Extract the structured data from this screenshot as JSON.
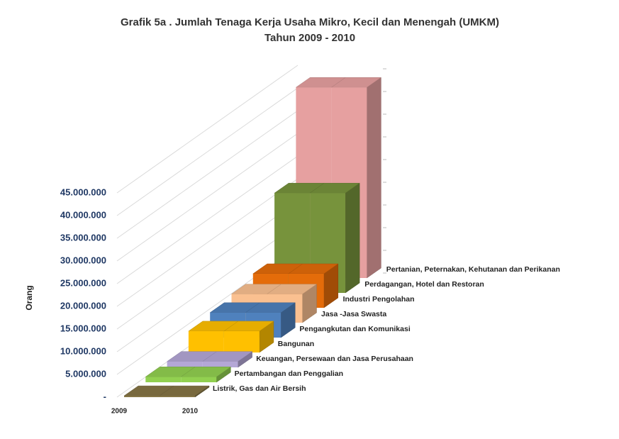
{
  "chart_data": {
    "type": "bar3d",
    "title": "Grafik 5a . Jumlah Tenaga Kerja Usaha Mikro, Kecil dan Menengah (UMKM)",
    "subtitle": "Tahun 2009 - 2010",
    "y_label": "Orang",
    "categories": [
      "2009",
      "2010"
    ],
    "series": [
      {
        "name": "Listrik, Gas dan Air Bersih",
        "color": "#857545",
        "values": [
          300000,
          300000
        ]
      },
      {
        "name": "Pertambangan dan Penggalian",
        "color": "#92d050",
        "values": [
          1200000,
          1200000
        ]
      },
      {
        "name": "Keuangan, Persewaan dan Jasa Perusahaan",
        "color": "#b4a7d6",
        "values": [
          1300000,
          1300000
        ]
      },
      {
        "name": "Bangunan",
        "color": "#ffc000",
        "values": [
          4700000,
          4700000
        ]
      },
      {
        "name": "Pengangkutan dan Komunikasi",
        "color": "#4f81bd",
        "values": [
          5500000,
          5500000
        ]
      },
      {
        "name": "Jasa -Jasa Swasta",
        "color": "#fac090",
        "values": [
          6300000,
          6300000
        ]
      },
      {
        "name": "Industri Pengolahan",
        "color": "#e46c0a",
        "values": [
          7500000,
          7500000
        ]
      },
      {
        "name": "Perdagangan, Hotel dan Restoran",
        "color": "#77933c",
        "values": [
          22000000,
          22000000
        ]
      },
      {
        "name": "Pertanian, Peternakan, Kehutanan dan Perikanan",
        "color": "#e6a0a0",
        "values": [
          42000000,
          42000000
        ]
      }
    ],
    "ylim": [
      0,
      45000000
    ],
    "yticks": [
      {
        "value": 0,
        "label": "-"
      },
      {
        "value": 5000000,
        "label": "5.000.000"
      },
      {
        "value": 10000000,
        "label": "10.000.000"
      },
      {
        "value": 15000000,
        "label": "15.000.000"
      },
      {
        "value": 20000000,
        "label": "20.000.000"
      },
      {
        "value": 25000000,
        "label": "25.000.000"
      },
      {
        "value": 30000000,
        "label": "30.000.000"
      },
      {
        "value": 35000000,
        "label": "35.000.000"
      },
      {
        "value": 40000000,
        "label": "40.000.000"
      },
      {
        "value": 45000000,
        "label": "45.000.000"
      }
    ],
    "grid": true
  }
}
